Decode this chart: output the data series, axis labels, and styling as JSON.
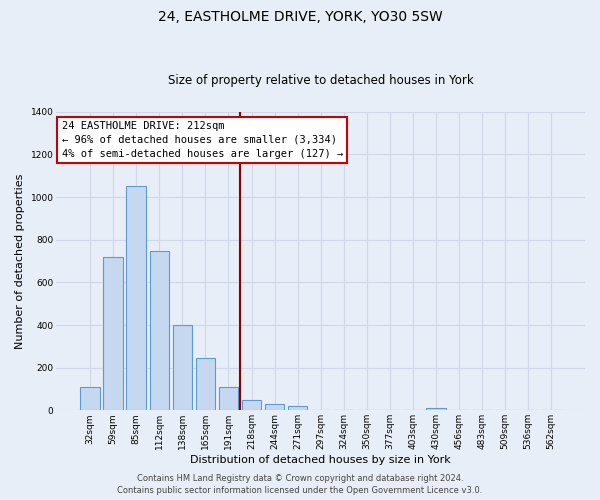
{
  "title": "24, EASTHOLME DRIVE, YORK, YO30 5SW",
  "subtitle": "Size of property relative to detached houses in York",
  "xlabel": "Distribution of detached houses by size in York",
  "ylabel": "Number of detached properties",
  "bar_labels": [
    "32sqm",
    "59sqm",
    "85sqm",
    "112sqm",
    "138sqm",
    "165sqm",
    "191sqm",
    "218sqm",
    "244sqm",
    "271sqm",
    "297sqm",
    "324sqm",
    "350sqm",
    "377sqm",
    "403sqm",
    "430sqm",
    "456sqm",
    "483sqm",
    "509sqm",
    "536sqm",
    "562sqm"
  ],
  "bar_values": [
    107,
    720,
    1050,
    748,
    400,
    245,
    110,
    48,
    28,
    22,
    0,
    0,
    0,
    0,
    0,
    10,
    0,
    0,
    0,
    0,
    0
  ],
  "bar_color": "#c5d8f0",
  "bar_edge_color": "#5b9bd5",
  "vline_x": 6.5,
  "vline_color": "#8b0000",
  "ylim": [
    0,
    1400
  ],
  "yticks": [
    0,
    200,
    400,
    600,
    800,
    1000,
    1200,
    1400
  ],
  "annotation_title": "24 EASTHOLME DRIVE: 212sqm",
  "annotation_line1": "← 96% of detached houses are smaller (3,334)",
  "annotation_line2": "4% of semi-detached houses are larger (127) →",
  "annotation_box_facecolor": "#ffffff",
  "annotation_box_edgecolor": "#cc0000",
  "footer_line1": "Contains HM Land Registry data © Crown copyright and database right 2024.",
  "footer_line2": "Contains public sector information licensed under the Open Government Licence v3.0.",
  "background_color": "#e8eef8",
  "grid_color": "#d0d8e8",
  "title_fontsize": 10,
  "subtitle_fontsize": 8.5,
  "axis_label_fontsize": 8,
  "tick_fontsize": 6.5,
  "annotation_fontsize": 7.5,
  "footer_fontsize": 6
}
